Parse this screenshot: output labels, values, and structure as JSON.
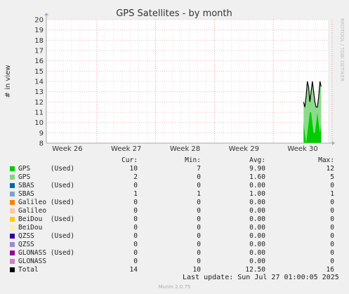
{
  "chart_data": {
    "type": "area",
    "title": "GPS Satellites - by month",
    "ylabel": "# in view",
    "side_label": "RRDTOOL / TOBI OETIKER",
    "ylim": [
      8,
      20
    ],
    "yticks": [
      8,
      9,
      10,
      11,
      12,
      13,
      14,
      15,
      16,
      17,
      18,
      19,
      20
    ],
    "xticks": [
      "Week 26",
      "Week 27",
      "Week 28",
      "Week 29",
      "Week 30"
    ],
    "x_range_days": [
      0,
      33.5
    ],
    "grid": true,
    "series": [
      {
        "name": "GPS",
        "color": "#00cc00",
        "x": [
          30.6,
          30.75,
          30.9,
          31.05,
          31.2,
          31.35,
          31.5,
          31.65,
          31.8,
          31.95,
          32.1,
          32.25,
          32.4,
          32.55,
          32.7
        ],
        "values": [
          10,
          9,
          8,
          9,
          10,
          11,
          11,
          10,
          9,
          9,
          10,
          11,
          10,
          9,
          10
        ]
      },
      {
        "name": "Total",
        "color": "#000000",
        "x": [
          30.6,
          30.75,
          30.9,
          31.05,
          31.2,
          31.35,
          31.5,
          31.65,
          31.8,
          31.95,
          32.1,
          32.25,
          32.4,
          32.55,
          32.7
        ],
        "values": [
          12,
          11.5,
          12.5,
          14,
          13.5,
          12,
          13,
          14,
          13,
          12,
          11.5,
          11.5,
          12.5,
          14,
          13.5
        ]
      }
    ]
  },
  "legend": {
    "headers": {
      "cur": "Cur:",
      "min": "Min:",
      "avg": "Avg:",
      "max": "Max:"
    },
    "rows": [
      {
        "name": "GPS     (Used)",
        "color": "#00cc00",
        "cur": "10",
        "min": "7",
        "avg": "9.90",
        "max": "12"
      },
      {
        "name": "GPS",
        "color": "#7fd77f",
        "cur": "2",
        "min": "0",
        "avg": "1.60",
        "max": "5"
      },
      {
        "name": "SBAS    (Used)",
        "color": "#0066b3",
        "cur": "0",
        "min": "0",
        "avg": "0.00",
        "max": "0"
      },
      {
        "name": "SBAS",
        "color": "#7fa3c8",
        "cur": "1",
        "min": "1",
        "avg": "1.00",
        "max": "1"
      },
      {
        "name": "Galileo (Used)",
        "color": "#ff8000",
        "cur": "0",
        "min": "0",
        "avg": "0.00",
        "max": "0"
      },
      {
        "name": "Galileo",
        "color": "#ffc6a6",
        "cur": "0",
        "min": "0",
        "avg": "0.00",
        "max": "0"
      },
      {
        "name": "BeiDou  (Used)",
        "color": "#ffcc00",
        "cur": "0",
        "min": "0",
        "avg": "0.00",
        "max": "0"
      },
      {
        "name": "BeiDou",
        "color": "#ffeeb0",
        "cur": "0",
        "min": "0",
        "avg": "0.00",
        "max": "0"
      },
      {
        "name": "QZSS    (Used)",
        "color": "#330099",
        "cur": "0",
        "min": "0",
        "avg": "0.00",
        "max": "0"
      },
      {
        "name": "QZSS",
        "color": "#9a8ccc",
        "cur": "0",
        "min": "0",
        "avg": "0.00",
        "max": "0"
      },
      {
        "name": "GLONASS (Used)",
        "color": "#990099",
        "cur": "0",
        "min": "0",
        "avg": "0.00",
        "max": "0"
      },
      {
        "name": "GLONASS",
        "color": "#cc7fcc",
        "cur": "0",
        "min": "0",
        "avg": "0.00",
        "max": "0"
      },
      {
        "name": "Total",
        "color": "#000000",
        "cur": "14",
        "min": "10",
        "avg": "12.50",
        "max": "16"
      }
    ]
  },
  "last_update": "Last update: Sun Jul 27 01:00:05 2025",
  "footer": "Munin 2.0.75"
}
